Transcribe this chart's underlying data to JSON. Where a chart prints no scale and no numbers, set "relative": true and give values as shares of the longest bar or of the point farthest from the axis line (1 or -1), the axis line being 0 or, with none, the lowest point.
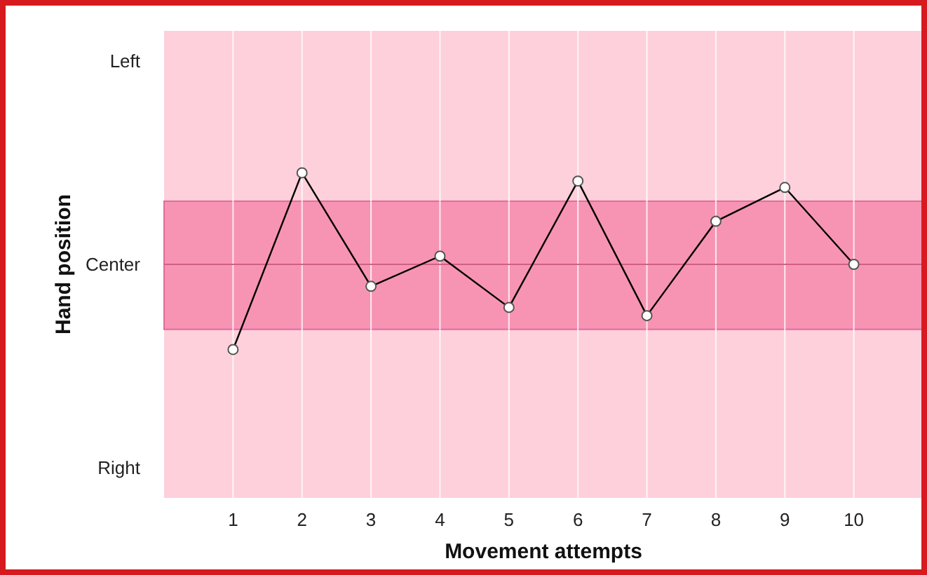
{
  "chart_data": {
    "type": "line",
    "xlabel": "Movement attempts",
    "ylabel": "Hand position",
    "x": [
      1,
      2,
      3,
      4,
      5,
      6,
      7,
      8,
      9,
      10
    ],
    "series": [
      {
        "color": "#000000",
        "values": [
          -0.93,
          1,
          -0.24,
          0.09,
          -0.47,
          0.91,
          -0.56,
          0.47,
          0.84,
          0
        ]
      }
    ],
    "relative": true,
    "annotations": [
      "Left",
      "Center",
      "Right"
    ],
    "xlim": [
      0,
      11
    ],
    "xticks": [
      1,
      2,
      3,
      4,
      5,
      6,
      7,
      8,
      9,
      10
    ],
    "bands": [
      {
        "axis": "y",
        "from": -0.71,
        "to": 0.69,
        "color": "#f794b4"
      }
    ],
    "ref_lines": [
      {
        "axis": "y",
        "value": 0,
        "color": "#d06088"
      }
    ],
    "grid": "x",
    "marker": "circle",
    "line_style": "solid"
  }
}
